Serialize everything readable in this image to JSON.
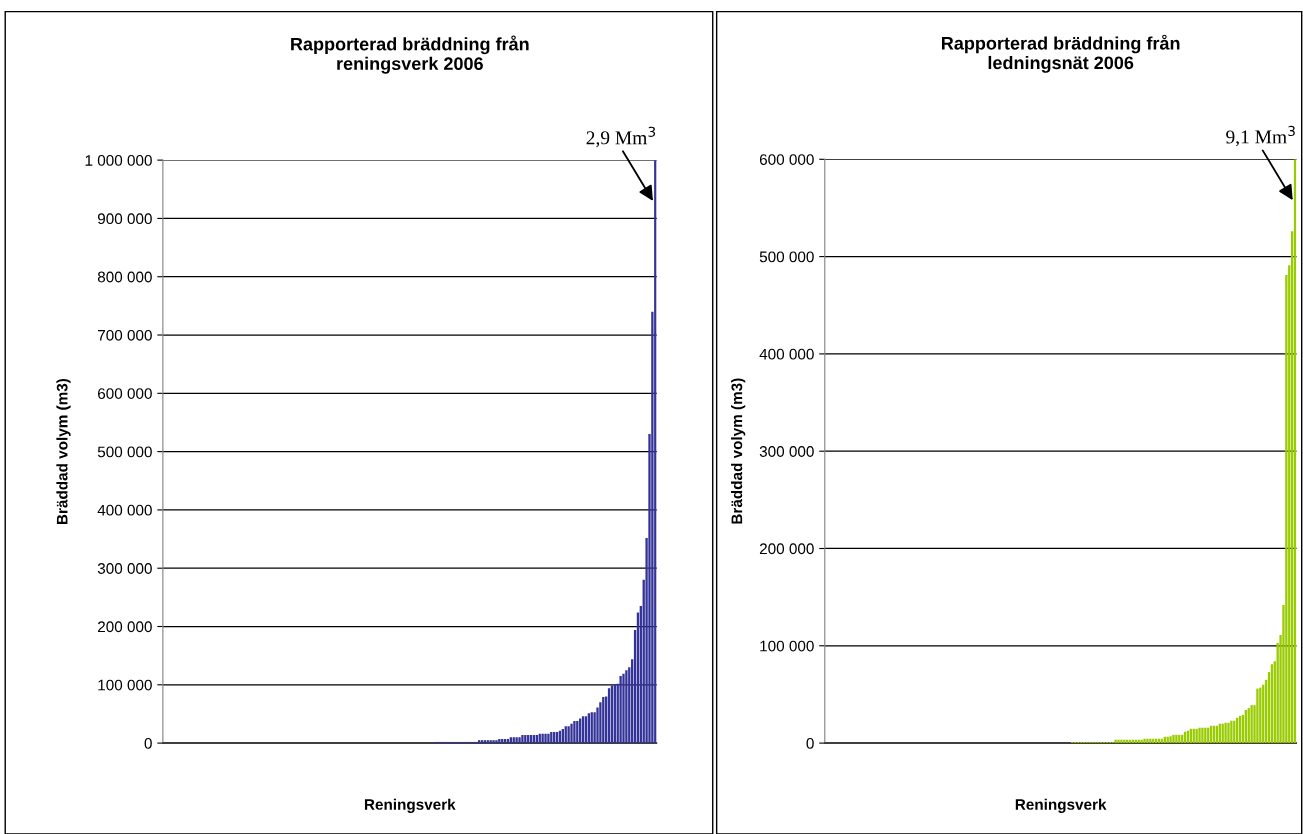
{
  "chart_data": [
    {
      "type": "bar",
      "title": "Rapporterad bräddning från\nreningsverk 2006",
      "xlabel": "Reningsverk",
      "ylabel": "Bräddad volym (m3)",
      "color": "#333399",
      "grid": "y",
      "legend": false,
      "tick_labels": "y",
      "annotations": [
        "2,9 Mm$^{3}$"
      ],
      "ylim": [
        0,
        1000000
      ],
      "yticks": [
        0,
        {
          "value": 100000,
          "label": "100 000"
        },
        {
          "value": 200000,
          "label": "200 000"
        },
        {
          "value": 300000,
          "label": "300 000"
        },
        {
          "value": 400000,
          "label": "400 000"
        },
        {
          "value": 500000,
          "label": "500 000"
        },
        {
          "value": 600000,
          "label": "600 000"
        },
        {
          "value": 700000,
          "label": "700 000"
        },
        {
          "value": 800000,
          "label": "800 000"
        },
        {
          "value": 900000,
          "label": "900 000"
        },
        {
          "value": 1000000,
          "label": "1 000 000"
        }
      ],
      "categories": [
        null,
        null,
        null,
        null,
        null,
        null,
        null,
        null,
        null,
        null,
        null,
        null,
        null,
        null,
        null,
        null,
        null,
        null,
        null,
        null,
        null,
        null,
        null,
        null,
        null,
        null,
        null,
        null,
        null,
        null,
        null,
        null,
        null,
        null,
        null,
        null,
        null,
        null,
        null,
        null,
        null,
        null,
        null,
        null,
        null,
        null,
        null,
        null,
        null,
        null,
        null,
        null,
        null,
        null,
        null,
        null,
        null,
        null,
        null,
        null,
        null,
        null,
        null,
        null,
        null,
        null,
        null,
        null,
        null,
        null,
        null,
        null,
        null,
        null,
        null,
        null,
        null,
        null,
        null,
        null,
        null,
        null,
        null,
        null,
        null,
        null,
        null,
        null,
        null,
        null,
        null,
        null,
        null,
        null,
        null,
        null,
        null,
        null,
        null,
        null,
        null,
        null,
        null,
        null,
        null,
        null,
        null,
        null,
        null,
        null,
        null,
        null,
        null,
        null,
        null,
        null,
        null,
        null,
        null,
        null,
        null,
        null,
        null,
        null,
        null,
        null,
        null,
        null,
        null,
        null,
        null,
        null,
        null,
        null,
        null,
        null,
        null,
        null,
        null,
        null,
        null,
        null,
        null,
        null,
        null,
        null,
        null,
        null,
        null,
        null,
        null,
        null,
        null,
        null,
        null,
        null,
        null,
        null,
        null,
        null,
        null,
        null,
        null,
        null,
        null,
        null,
        null,
        null,
        null,
        null,
        null
      ],
      "values": [
        0,
        0,
        0,
        0,
        0,
        0,
        0,
        0,
        0,
        0,
        0,
        0,
        0,
        0,
        0,
        0,
        0,
        0,
        0,
        0,
        0,
        0,
        0,
        0,
        0,
        0,
        0,
        0,
        0,
        0,
        0,
        0,
        0,
        0,
        0,
        0,
        0,
        0,
        0,
        0,
        0,
        0,
        0,
        0,
        0,
        0,
        0,
        0,
        0,
        0,
        0,
        0,
        0,
        0,
        0,
        0,
        0,
        0,
        0,
        0,
        0,
        0,
        0,
        0,
        0,
        0,
        0,
        0,
        0,
        0,
        0,
        0,
        0,
        0,
        0,
        0,
        0,
        0,
        0,
        0,
        0,
        0,
        0,
        0,
        0,
        0,
        0,
        0,
        0,
        0,
        0,
        0,
        0,
        0,
        2000,
        2000,
        2000,
        2000,
        2000,
        2000,
        2000,
        2000,
        2000,
        2000,
        2000,
        2000,
        2000,
        2000,
        2000,
        5000,
        5000,
        5000,
        5000,
        5000,
        5000,
        5000,
        7000,
        7000,
        7000,
        7000,
        10000,
        10000,
        10000,
        10000,
        14000,
        14000,
        14000,
        14000,
        14000,
        14000,
        16000,
        16000,
        16000,
        16000,
        19000,
        19000,
        19000,
        21000,
        24000,
        29000,
        29000,
        33000,
        38000,
        38000,
        42000,
        46000,
        46000,
        51000,
        53000,
        53000,
        61000,
        70000,
        79000,
        80000,
        94000,
        99000,
        101000,
        102000,
        115000,
        119000,
        125000,
        130000,
        144000,
        194000,
        224000,
        235000,
        280000,
        352000,
        530000,
        740000,
        1000000
      ]
    },
    {
      "type": "bar",
      "title": "Rapporterad bräddning från\nledningsnät 2006",
      "xlabel": "Reningsverk",
      "ylabel": "Bräddad volym (m3)",
      "color": "#99cc00",
      "grid": "y",
      "legend": false,
      "tick_labels": "y",
      "annotations": [
        "9,1 Mm$^{3}$"
      ],
      "ylim": [
        0,
        600000
      ],
      "yticks": [
        0,
        {
          "value": 100000,
          "label": "100 000"
        },
        {
          "value": 200000,
          "label": "200 000"
        },
        {
          "value": 300000,
          "label": "300 000"
        },
        {
          "value": 400000,
          "label": "400 000"
        },
        {
          "value": 500000,
          "label": "500 000"
        },
        {
          "value": 600000,
          "label": "600 000"
        }
      ],
      "categories": [
        null,
        null,
        null,
        null,
        null,
        null,
        null,
        null,
        null,
        null,
        null,
        null,
        null,
        null,
        null,
        null,
        null,
        null,
        null,
        null,
        null,
        null,
        null,
        null,
        null,
        null,
        null,
        null,
        null,
        null,
        null,
        null,
        null,
        null,
        null,
        null,
        null,
        null,
        null,
        null,
        null,
        null,
        null,
        null,
        null,
        null,
        null,
        null,
        null,
        null,
        null,
        null,
        null,
        null,
        null,
        null,
        null,
        null,
        null,
        null,
        null,
        null,
        null,
        null,
        null,
        null,
        null,
        null,
        null,
        null,
        null,
        null,
        null,
        null,
        null,
        null,
        null,
        null,
        null,
        null,
        null,
        null,
        null,
        null,
        null,
        null,
        null,
        null,
        null,
        null,
        null,
        null,
        null,
        null,
        null,
        null,
        null,
        null,
        null,
        null,
        null,
        null,
        null,
        null,
        null,
        null,
        null,
        null,
        null,
        null,
        null,
        null,
        null,
        null,
        null,
        null,
        null,
        null,
        null,
        null,
        null,
        null,
        null,
        null,
        null,
        null,
        null,
        null,
        null,
        null,
        null,
        null,
        null,
        null,
        null,
        null,
        null,
        null,
        null,
        null,
        null,
        null,
        null,
        null,
        null,
        null,
        null,
        null,
        null,
        null,
        null,
        null,
        null,
        null,
        null,
        null,
        null,
        null,
        null,
        null,
        null,
        null,
        null
      ],
      "values": [
        0,
        0,
        0,
        0,
        0,
        0,
        0,
        0,
        0,
        0,
        0,
        0,
        0,
        0,
        0,
        0,
        0,
        0,
        0,
        0,
        0,
        0,
        0,
        0,
        0,
        0,
        0,
        0,
        0,
        0,
        0,
        0,
        0,
        0,
        0,
        0,
        0,
        0,
        0,
        0,
        0,
        0,
        0,
        0,
        0,
        0,
        0,
        0,
        0,
        0,
        0,
        0,
        0,
        0,
        0,
        0,
        0,
        0,
        0,
        0,
        0,
        0,
        0,
        0,
        0,
        0,
        0,
        0,
        0,
        0,
        0,
        0,
        0,
        0,
        0,
        0,
        0,
        0,
        0,
        0,
        0,
        0,
        0,
        0,
        0,
        1000,
        1000,
        1000,
        1000,
        1000,
        1000,
        1000,
        1000,
        1000,
        1000,
        1000,
        1000,
        1000,
        1000,
        1000,
        3500,
        3500,
        3500,
        3500,
        3500,
        3500,
        3500,
        3500,
        3500,
        3500,
        4500,
        4500,
        4500,
        4500,
        4500,
        4500,
        4500,
        6500,
        6500,
        7000,
        8500,
        8500,
        8500,
        8500,
        11700,
        12700,
        14700,
        14700,
        14700,
        15800,
        15800,
        15800,
        15800,
        17800,
        17800,
        17800,
        19900,
        19900,
        20900,
        20900,
        23000,
        23000,
        26000,
        28000,
        29000,
        34000,
        36000,
        39000,
        39000,
        56000,
        57000,
        60000,
        65000,
        73000,
        81000,
        84000,
        103000,
        111000,
        142000,
        481000,
        491000,
        526000,
        600000
      ]
    }
  ]
}
